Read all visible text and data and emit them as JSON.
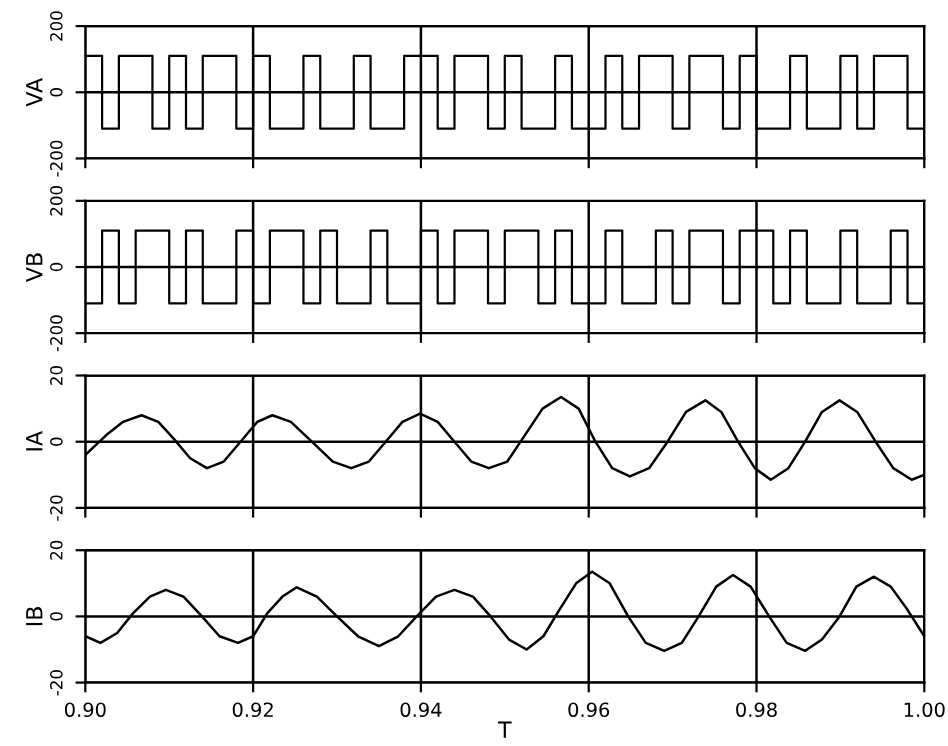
{
  "chart_data": [
    {
      "type": "step",
      "ylabel": "VA",
      "x": [
        0.9,
        0.902,
        0.904,
        0.906,
        0.908,
        0.91,
        0.912,
        0.914,
        0.916,
        0.918,
        0.92,
        0.922,
        0.924,
        0.926,
        0.928,
        0.93,
        0.932,
        0.934,
        0.936,
        0.938,
        0.94,
        0.942,
        0.944,
        0.946,
        0.948,
        0.95,
        0.952,
        0.954,
        0.956,
        0.958,
        0.96,
        0.962,
        0.964,
        0.966,
        0.968,
        0.97,
        0.972,
        0.974,
        0.976,
        0.978,
        0.98,
        0.982,
        0.984,
        0.986,
        0.988,
        0.99,
        0.992,
        0.994,
        0.996,
        0.998,
        1.0
      ],
      "values": [
        110,
        -110,
        110,
        110,
        -110,
        110,
        -110,
        110,
        110,
        -110,
        110,
        -110,
        -110,
        110,
        -110,
        -110,
        110,
        -110,
        -110,
        110,
        110,
        -110,
        110,
        110,
        -110,
        110,
        -110,
        -110,
        110,
        -110,
        -110,
        110,
        -110,
        110,
        110,
        -110,
        110,
        110,
        -110,
        110,
        -110,
        -110,
        110,
        -110,
        -110,
        110,
        -110,
        110,
        110,
        -110,
        -110
      ],
      "color": "#000000",
      "xlim": [
        0.9,
        1.0
      ],
      "xticks": [
        {
          "value": 0.9,
          "label": null
        },
        {
          "value": 0.92,
          "label": null
        },
        {
          "value": 0.94,
          "label": null
        },
        {
          "value": 0.96,
          "label": null
        },
        {
          "value": 0.98,
          "label": null
        },
        {
          "value": 1.0,
          "label": null
        }
      ],
      "ylim": [
        -200,
        200
      ],
      "yticks": [
        -200,
        0,
        200
      ],
      "grid": true,
      "tick_labels": "y"
    },
    {
      "type": "step",
      "ylabel": "VB",
      "x": [
        0.9,
        0.902,
        0.904,
        0.906,
        0.908,
        0.91,
        0.912,
        0.914,
        0.916,
        0.918,
        0.92,
        0.922,
        0.924,
        0.926,
        0.928,
        0.93,
        0.932,
        0.934,
        0.936,
        0.938,
        0.94,
        0.942,
        0.944,
        0.946,
        0.948,
        0.95,
        0.952,
        0.954,
        0.956,
        0.958,
        0.96,
        0.962,
        0.964,
        0.966,
        0.968,
        0.97,
        0.972,
        0.974,
        0.976,
        0.978,
        0.98,
        0.982,
        0.984,
        0.986,
        0.988,
        0.99,
        0.992,
        0.994,
        0.996,
        0.998,
        1.0
      ],
      "values": [
        -110,
        110,
        -110,
        110,
        110,
        -110,
        110,
        -110,
        -110,
        110,
        -110,
        110,
        110,
        -110,
        110,
        -110,
        -110,
        110,
        -110,
        -110,
        110,
        -110,
        110,
        110,
        -110,
        110,
        110,
        -110,
        110,
        -110,
        -110,
        110,
        -110,
        -110,
        110,
        -110,
        110,
        110,
        -110,
        110,
        110,
        -110,
        110,
        -110,
        -110,
        110,
        -110,
        -110,
        110,
        -110,
        110
      ],
      "color": "#000000",
      "xlim": [
        0.9,
        1.0
      ],
      "xticks": [
        {
          "value": 0.9,
          "label": null
        },
        {
          "value": 0.92,
          "label": null
        },
        {
          "value": 0.94,
          "label": null
        },
        {
          "value": 0.96,
          "label": null
        },
        {
          "value": 0.98,
          "label": null
        },
        {
          "value": 1.0,
          "label": null
        }
      ],
      "ylim": [
        -200,
        200
      ],
      "yticks": [
        -200,
        0,
        200
      ],
      "grid": true,
      "tick_labels": "y"
    },
    {
      "type": "line",
      "ylabel": "IA",
      "x": [
        0.9,
        0.9025,
        0.9045,
        0.9067,
        0.9087,
        0.9105,
        0.9125,
        0.9145,
        0.9165,
        0.9185,
        0.9205,
        0.9223,
        0.9245,
        0.927,
        0.9295,
        0.9317,
        0.9338,
        0.9358,
        0.9378,
        0.9399,
        0.942,
        0.944,
        0.946,
        0.9481,
        0.9503,
        0.9524,
        0.9545,
        0.9567,
        0.9588,
        0.9608,
        0.9628,
        0.9649,
        0.9672,
        0.9694,
        0.9716,
        0.9739,
        0.9758,
        0.9778,
        0.9798,
        0.9817,
        0.9838,
        0.9858,
        0.9878,
        0.9899,
        0.992,
        0.9942,
        0.9963,
        0.9985,
        1.0
      ],
      "values": [
        -4,
        2,
        6,
        8,
        6,
        1,
        -5,
        -8,
        -6,
        0,
        6,
        8,
        6,
        0,
        -6,
        -8,
        -6,
        0,
        6,
        8.5,
        6,
        0,
        -6,
        -8,
        -6,
        2,
        10,
        13.5,
        10,
        0,
        -8,
        -10.5,
        -8,
        0,
        9,
        12.5,
        9,
        0,
        -8,
        -11.5,
        -8,
        0,
        9,
        12.5,
        9,
        0,
        -8,
        -11.5,
        -10
      ],
      "color": "#000000",
      "xlim": [
        0.9,
        1.0
      ],
      "xticks": [
        {
          "value": 0.9,
          "label": null
        },
        {
          "value": 0.92,
          "label": null
        },
        {
          "value": 0.94,
          "label": null
        },
        {
          "value": 0.96,
          "label": null
        },
        {
          "value": 0.98,
          "label": null
        },
        {
          "value": 1.0,
          "label": null
        }
      ],
      "ylim": [
        -20,
        20
      ],
      "yticks": [
        -20,
        0,
        20
      ],
      "grid": true,
      "tick_labels": "y"
    },
    {
      "type": "line",
      "ylabel": "IB",
      "xlabel": "T",
      "x": [
        0.9,
        0.9018,
        0.9038,
        0.9057,
        0.9077,
        0.9096,
        0.9117,
        0.9139,
        0.916,
        0.9182,
        0.92,
        0.9217,
        0.9235,
        0.9252,
        0.9276,
        0.93,
        0.9325,
        0.935,
        0.9373,
        0.9395,
        0.9418,
        0.944,
        0.9462,
        0.9483,
        0.9505,
        0.9526,
        0.9546,
        0.9565,
        0.9585,
        0.9604,
        0.9625,
        0.9647,
        0.9668,
        0.969,
        0.9711,
        0.9731,
        0.9752,
        0.9772,
        0.9793,
        0.9815,
        0.9836,
        0.9858,
        0.9878,
        0.9899,
        0.9919,
        0.994,
        0.996,
        0.998,
        1.0
      ],
      "values": [
        -6,
        -8,
        -5,
        1,
        6,
        8,
        6,
        0,
        -6,
        -8,
        -6,
        1,
        6,
        8.8,
        6,
        0,
        -6,
        -9,
        -6,
        0,
        6,
        8,
        6,
        0,
        -7,
        -10,
        -6,
        2,
        10,
        13.5,
        10,
        0,
        -8,
        -10.4,
        -8,
        0,
        9,
        12.5,
        9,
        0,
        -8,
        -10.4,
        -7,
        0,
        9,
        12,
        9,
        2,
        -6
      ],
      "color": "#000000",
      "xlim": [
        0.9,
        1.0
      ],
      "xticks": [
        {
          "value": 0.9,
          "label": "0.90"
        },
        {
          "value": 0.92,
          "label": "0.92"
        },
        {
          "value": 0.94,
          "label": "0.94"
        },
        {
          "value": 0.96,
          "label": "0.96"
        },
        {
          "value": 0.98,
          "label": "0.98"
        },
        {
          "value": 1.0,
          "label": "1.00"
        }
      ],
      "ylim": [
        -20,
        20
      ],
      "yticks": [
        -20,
        0,
        20
      ],
      "grid": true
    }
  ]
}
